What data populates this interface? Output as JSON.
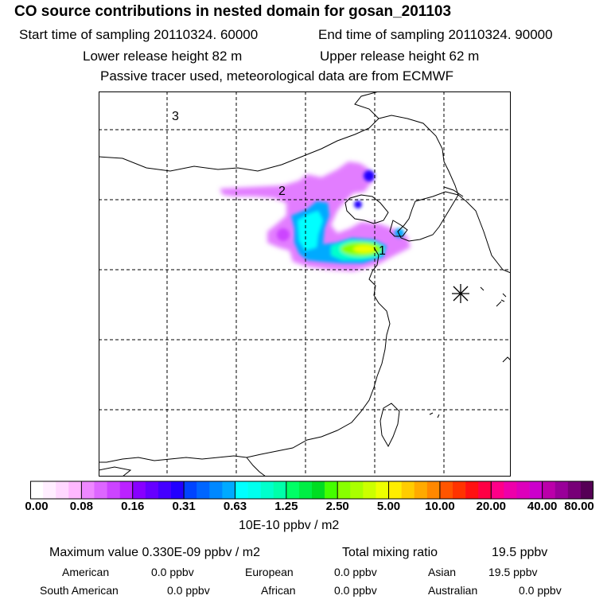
{
  "title": "CO  source contributions in nested domain for gosan_201103",
  "header": {
    "start": "Start time of sampling 20110324. 60000",
    "end": "End time of sampling 20110324. 90000",
    "lower": "Lower release height   82 m",
    "upper": "Upper release height   62 m",
    "note": "Passive tracer used, meteorological data are from ECMWF"
  },
  "map": {
    "source_labels": [
      "1",
      "2",
      "3"
    ],
    "receptor_marker": "receptor-asterisk"
  },
  "colorbar": {
    "ticks": [
      "0.00",
      "0.08",
      "0.16",
      "0.31",
      "0.63",
      "1.25",
      "2.50",
      "5.00",
      "10.00",
      "20.00",
      "40.00",
      "80.00"
    ],
    "colors": [
      "#ffffff",
      "#ffeeff",
      "#ffd8ff",
      "#ffb8ff",
      "#ee88ff",
      "#dd66ff",
      "#cc44ff",
      "#bb22ff",
      "#8800ff",
      "#6600ff",
      "#4400ff",
      "#2200ff",
      "#0044ff",
      "#0066ff",
      "#0088ff",
      "#00aaff",
      "#00ffff",
      "#00ffee",
      "#00ffcc",
      "#00ffaa",
      "#00ff66",
      "#00ee44",
      "#00dd22",
      "#44ff00",
      "#88ff00",
      "#aaff00",
      "#ccff00",
      "#eeff00",
      "#ffee00",
      "#ffcc00",
      "#ffaa00",
      "#ff8800",
      "#ff5500",
      "#ff3300",
      "#ff1111",
      "#ff0044",
      "#ff0088",
      "#ee00aa",
      "#dd00bb",
      "#cc00cc",
      "#bb00aa",
      "#990099",
      "#770077",
      "#550055"
    ],
    "unit": "10E-10 ppbv / m2"
  },
  "stats": {
    "max_label": "Maximum value  0.330E-09 ppbv / m2",
    "total_label": "Total mixing ratio",
    "total_value": "19.5 ppbv",
    "regions": [
      {
        "name": "American",
        "value": "0.0 ppbv"
      },
      {
        "name": "European",
        "value": "0.0 ppbv"
      },
      {
        "name": "Asian",
        "value": "19.5 ppbv"
      },
      {
        "name": "South American",
        "value": "0.0 ppbv"
      },
      {
        "name": "African",
        "value": "0.0 ppbv"
      },
      {
        "name": "Australian",
        "value": "0.0 ppbv"
      }
    ]
  }
}
